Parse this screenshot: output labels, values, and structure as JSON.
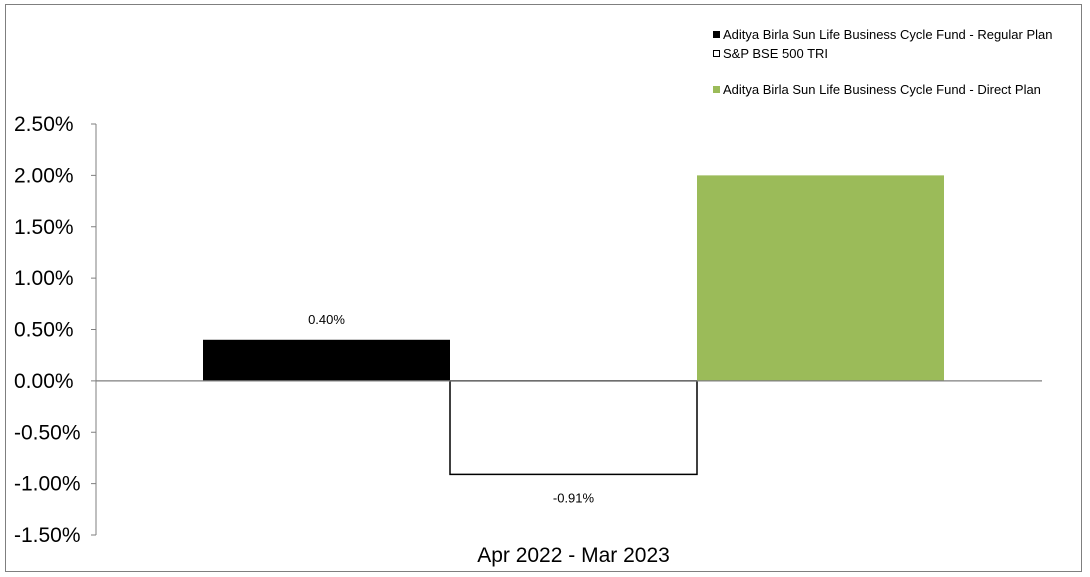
{
  "chart_data": {
    "type": "bar",
    "categories": [
      "Apr 2022 - Mar 2023"
    ],
    "series": [
      {
        "name": "Aditya Birla Sun Life Business Cycle Fund - Regular Plan",
        "values": [
          0.4
        ],
        "color": "#000000",
        "label": "0.40%"
      },
      {
        "name": "S&P BSE 500 TRI",
        "values": [
          -0.91
        ],
        "color": "#ffffff",
        "stroke": "#000000",
        "label": "-0.91%"
      },
      {
        "name": "Aditya Birla Sun Life Business Cycle Fund - Direct Plan",
        "values": [
          2.0
        ],
        "color": "#9bbb59",
        "label": ""
      }
    ],
    "ylim": [
      -1.5,
      2.5
    ],
    "yticks": [
      {
        "value": 2.5,
        "label": "2.50%"
      },
      {
        "value": 2.0,
        "label": "2.00%"
      },
      {
        "value": 1.5,
        "label": "1.50%"
      },
      {
        "value": 1.0,
        "label": "1.00%"
      },
      {
        "value": 0.5,
        "label": "0.50%"
      },
      {
        "value": 0.0,
        "label": "0.00%"
      },
      {
        "value": -0.5,
        "label": "-0.50%"
      },
      {
        "value": -1.0,
        "label": "-1.00%"
      },
      {
        "value": -1.5,
        "label": "-1.50%"
      }
    ],
    "title": "",
    "xlabel": "",
    "ylabel": "",
    "grid": false,
    "legend_position": "top-right"
  }
}
